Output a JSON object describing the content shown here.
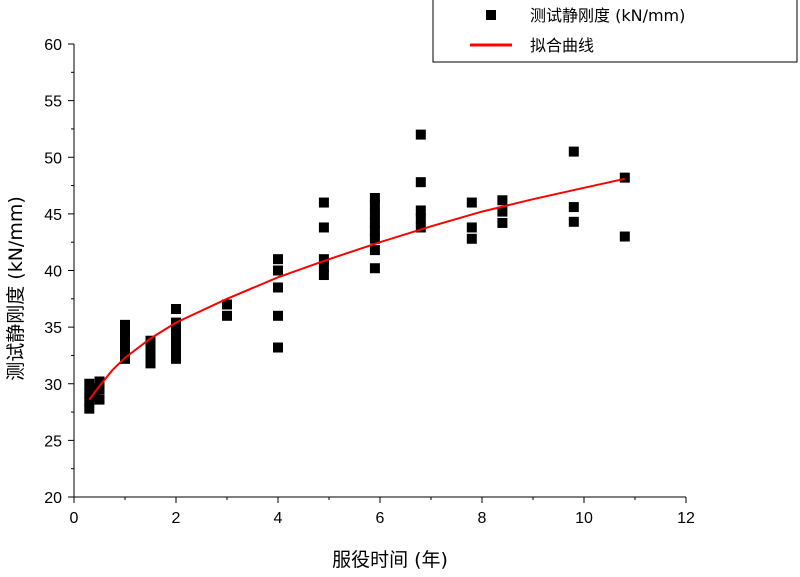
{
  "chart_data": {
    "type": "scatter",
    "title": "",
    "xlabel": "服役时间 (年)",
    "ylabel": "测试静刚度 (kN/mm)",
    "xlim": [
      0,
      12
    ],
    "ylim": [
      20,
      60
    ],
    "xticks": [
      0,
      2,
      4,
      6,
      8,
      10,
      12
    ],
    "yticks": [
      20,
      25,
      30,
      35,
      40,
      45,
      50,
      55,
      60
    ],
    "grid": false,
    "legend_position": "top-right",
    "series": [
      {
        "name": "测试静刚度 (kN/mm)",
        "kind": "scatter",
        "color": "#000000",
        "points": [
          [
            0.3,
            27.8
          ],
          [
            0.3,
            28.5
          ],
          [
            0.3,
            29.2
          ],
          [
            0.3,
            30.0
          ],
          [
            0.4,
            28.8
          ],
          [
            0.4,
            29.6
          ],
          [
            0.5,
            28.6
          ],
          [
            0.5,
            29.5
          ],
          [
            0.5,
            30.2
          ],
          [
            1.0,
            32.2
          ],
          [
            1.0,
            32.8
          ],
          [
            1.0,
            33.4
          ],
          [
            1.0,
            34.0
          ],
          [
            1.0,
            34.6
          ],
          [
            1.0,
            35.2
          ],
          [
            1.5,
            31.8
          ],
          [
            1.5,
            32.5
          ],
          [
            1.5,
            33.2
          ],
          [
            1.5,
            33.8
          ],
          [
            2.0,
            32.2
          ],
          [
            2.0,
            33.0
          ],
          [
            2.0,
            33.8
          ],
          [
            2.0,
            34.6
          ],
          [
            2.0,
            35.4
          ],
          [
            2.0,
            36.6
          ],
          [
            3.0,
            36.0
          ],
          [
            3.0,
            37.0
          ],
          [
            4.0,
            33.2
          ],
          [
            4.0,
            36.0
          ],
          [
            4.0,
            38.5
          ],
          [
            4.0,
            40.0
          ],
          [
            4.0,
            41.0
          ],
          [
            4.9,
            39.6
          ],
          [
            4.9,
            40.3
          ],
          [
            4.9,
            41.0
          ],
          [
            4.9,
            43.8
          ],
          [
            4.9,
            46.0
          ],
          [
            5.9,
            40.2
          ],
          [
            5.9,
            41.8
          ],
          [
            5.9,
            42.8
          ],
          [
            5.9,
            43.5
          ],
          [
            5.9,
            44.2
          ],
          [
            5.9,
            45.0
          ],
          [
            5.9,
            45.8
          ],
          [
            5.9,
            46.4
          ],
          [
            6.8,
            43.8
          ],
          [
            6.8,
            44.6
          ],
          [
            6.8,
            45.3
          ],
          [
            6.8,
            47.8
          ],
          [
            6.8,
            52.0
          ],
          [
            7.8,
            42.8
          ],
          [
            7.8,
            43.8
          ],
          [
            7.8,
            46.0
          ],
          [
            8.4,
            44.2
          ],
          [
            8.4,
            45.2
          ],
          [
            8.4,
            46.2
          ],
          [
            9.8,
            44.3
          ],
          [
            9.8,
            45.6
          ],
          [
            9.8,
            50.5
          ],
          [
            10.8,
            43.0
          ],
          [
            10.8,
            48.2
          ]
        ]
      },
      {
        "name": "拟合曲线",
        "kind": "line",
        "color": "#ff0000",
        "points": [
          [
            0.3,
            28.6
          ],
          [
            0.5,
            29.8
          ],
          [
            0.75,
            31.2
          ],
          [
            1.0,
            32.3
          ],
          [
            1.5,
            34.0
          ],
          [
            2.0,
            35.4
          ],
          [
            3.0,
            37.5
          ],
          [
            4.0,
            39.4
          ],
          [
            5.0,
            41.0
          ],
          [
            6.0,
            42.5
          ],
          [
            7.0,
            43.9
          ],
          [
            8.0,
            45.2
          ],
          [
            9.0,
            46.3
          ],
          [
            10.0,
            47.3
          ],
          [
            10.8,
            48.1
          ]
        ]
      }
    ]
  }
}
